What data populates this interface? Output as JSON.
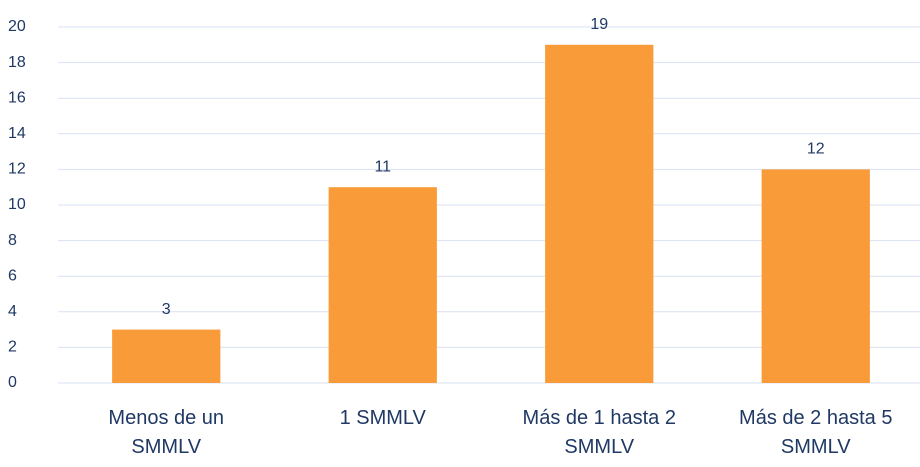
{
  "chart_data": {
    "type": "bar",
    "categories": [
      "Menos de un SMMLV",
      "1 SMMLV",
      "Más de 1 hasta 2 SMMLV",
      "Más de 2 hasta 5 SMMLV"
    ],
    "values": [
      3,
      11,
      19,
      12
    ],
    "color": "#f99b38",
    "ylim": [
      0,
      20
    ],
    "yticks": [
      0,
      2,
      4,
      6,
      8,
      10,
      12,
      14,
      16,
      18,
      20
    ],
    "grid": true
  }
}
